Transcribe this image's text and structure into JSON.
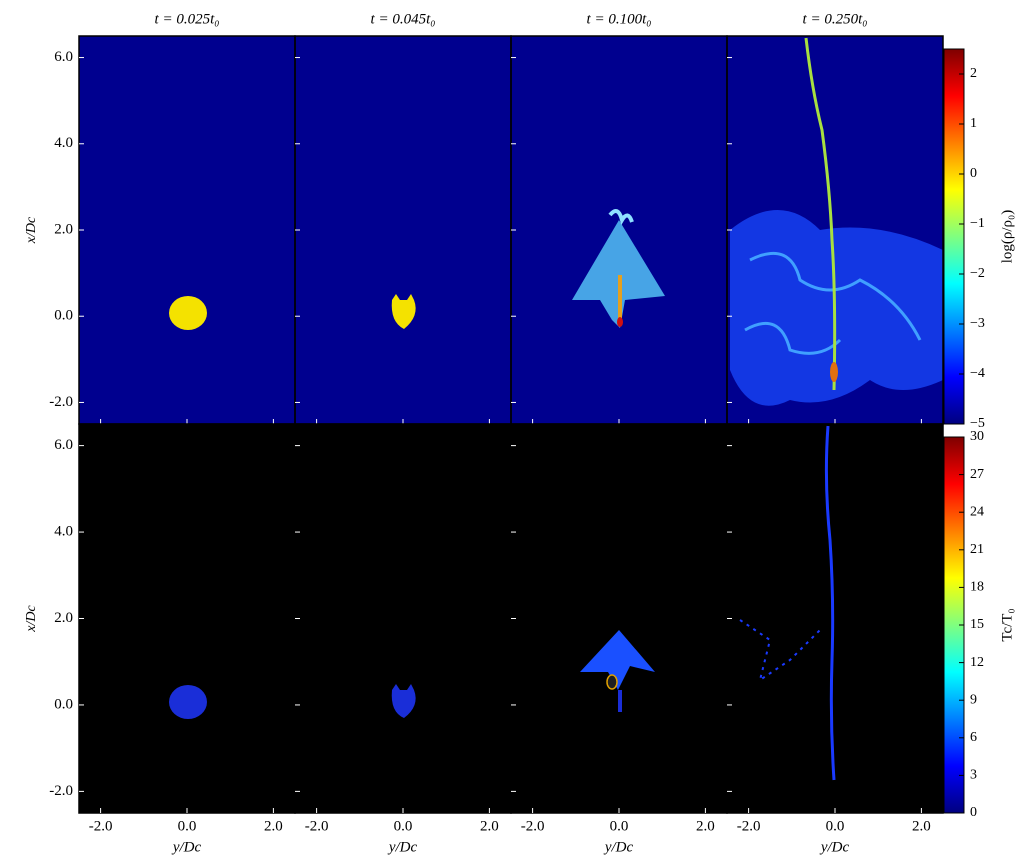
{
  "chart_data": {
    "type": "image",
    "titles": [
      "t = 0.025t₀",
      "t = 0.045t₀",
      "t = 0.100t₀",
      "t = 0.250t₀"
    ],
    "xlabel": "y/Dc",
    "ylabel": "x/Dc",
    "xlim": [
      -2.5,
      2.5
    ],
    "ylim": [
      -2.5,
      6.5
    ],
    "xticks": [
      {
        "value": -2,
        "label": "-2.0"
      },
      {
        "value": 0,
        "label": "0.0"
      },
      {
        "value": 2,
        "label": "2.0"
      }
    ],
    "yticks": [
      {
        "value": -2,
        "label": "-2.0"
      },
      {
        "value": 0,
        "label": "0.0"
      },
      {
        "value": 2,
        "label": "2.0"
      },
      {
        "value": 4,
        "label": "4.0"
      },
      {
        "value": 6,
        "label": "6.0"
      }
    ],
    "rows": [
      {
        "colorbar_label": "log(ρ/ρ₀)",
        "clim": [
          -5,
          2.5
        ],
        "background": "#00008f",
        "cticks": [
          {
            "value": -5,
            "label": "−5"
          },
          {
            "value": -4,
            "label": "−4"
          },
          {
            "value": -3,
            "label": "−3"
          },
          {
            "value": -2,
            "label": "−2"
          },
          {
            "value": -1,
            "label": "−1"
          },
          0,
          1,
          2
        ]
      },
      {
        "colorbar_label": "Tc/T₀",
        "clim": [
          0,
          30
        ],
        "background": "#000000",
        "cticks": [
          0,
          3,
          6,
          9,
          12,
          15,
          18,
          21,
          24,
          27,
          30
        ]
      }
    ]
  }
}
